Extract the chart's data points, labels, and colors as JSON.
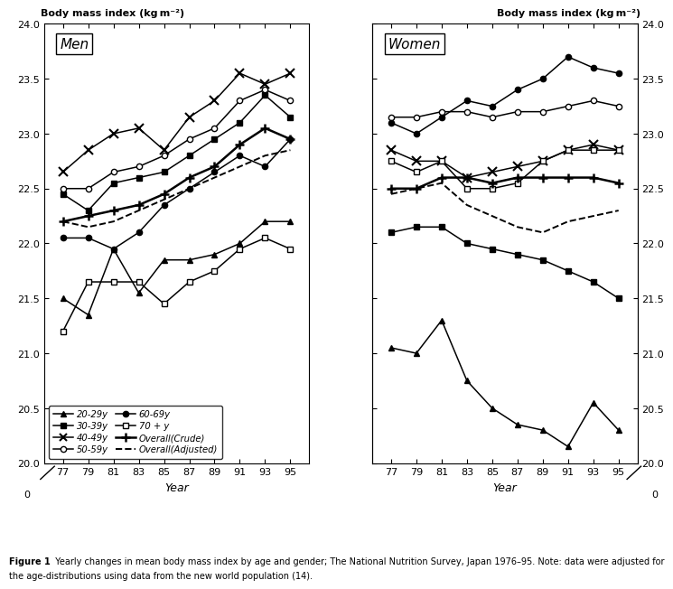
{
  "years": [
    77,
    79,
    81,
    83,
    85,
    87,
    89,
    91,
    93,
    95
  ],
  "men": {
    "age20_29": [
      21.5,
      21.35,
      21.95,
      21.55,
      21.85,
      21.85,
      21.9,
      22.0,
      22.2,
      22.2
    ],
    "age30_39": [
      22.45,
      22.3,
      22.55,
      22.6,
      22.65,
      22.8,
      22.95,
      23.1,
      23.35,
      23.15
    ],
    "age40_49": [
      22.65,
      22.85,
      23.0,
      23.05,
      22.85,
      23.15,
      23.3,
      23.55,
      23.45,
      23.55
    ],
    "age50_59": [
      22.5,
      22.5,
      22.65,
      22.7,
      22.8,
      22.95,
      23.05,
      23.3,
      23.4,
      23.3
    ],
    "age60_69": [
      22.05,
      22.05,
      21.95,
      22.1,
      22.35,
      22.5,
      22.65,
      22.8,
      22.7,
      22.95
    ],
    "age70plus": [
      21.2,
      21.65,
      21.65,
      21.65,
      21.45,
      21.65,
      21.75,
      21.95,
      22.05,
      21.95
    ],
    "overall_crude": [
      22.2,
      22.25,
      22.3,
      22.35,
      22.45,
      22.6,
      22.7,
      22.9,
      23.05,
      22.95
    ],
    "overall_adjusted": [
      22.2,
      22.15,
      22.2,
      22.3,
      22.4,
      22.5,
      22.6,
      22.7,
      22.8,
      22.85
    ]
  },
  "women": {
    "age20_29": [
      21.05,
      21.0,
      21.3,
      20.75,
      20.5,
      20.35,
      20.3,
      20.15,
      20.55,
      20.3
    ],
    "age30_39": [
      22.1,
      22.15,
      22.15,
      22.0,
      21.95,
      21.9,
      21.85,
      21.75,
      21.65,
      21.5
    ],
    "age40_49": [
      22.85,
      22.75,
      22.75,
      22.6,
      22.65,
      22.7,
      22.75,
      22.85,
      22.9,
      22.85
    ],
    "age50_59": [
      23.15,
      23.15,
      23.2,
      23.2,
      23.15,
      23.2,
      23.2,
      23.25,
      23.3,
      23.25
    ],
    "age60_69": [
      23.1,
      23.0,
      23.15,
      23.3,
      23.25,
      23.4,
      23.5,
      23.7,
      23.6,
      23.55
    ],
    "age70plus": [
      22.75,
      22.65,
      22.75,
      22.5,
      22.5,
      22.55,
      22.75,
      22.85,
      22.85,
      22.85
    ],
    "overall_crude": [
      22.5,
      22.5,
      22.6,
      22.6,
      22.55,
      22.6,
      22.6,
      22.6,
      22.6,
      22.55
    ],
    "overall_adjusted": [
      22.45,
      22.5,
      22.55,
      22.35,
      22.25,
      22.15,
      22.1,
      22.2,
      22.25,
      22.3
    ]
  },
  "ylim": [
    20.0,
    24.0
  ],
  "yticks": [
    20.0,
    20.5,
    21.0,
    21.5,
    22.0,
    22.5,
    23.0,
    23.5,
    24.0
  ],
  "ylabel_top": "Body mass index (kg m⁻²)",
  "xlabel": "Year",
  "caption_bold": "Figure 1",
  "caption_rest": "  Yearly changes in mean body mass index by age and gender; The National Nutrition Survey, Japan 1976–95. Note: data were adjusted for the age-distributions using data from the new world population (14)."
}
